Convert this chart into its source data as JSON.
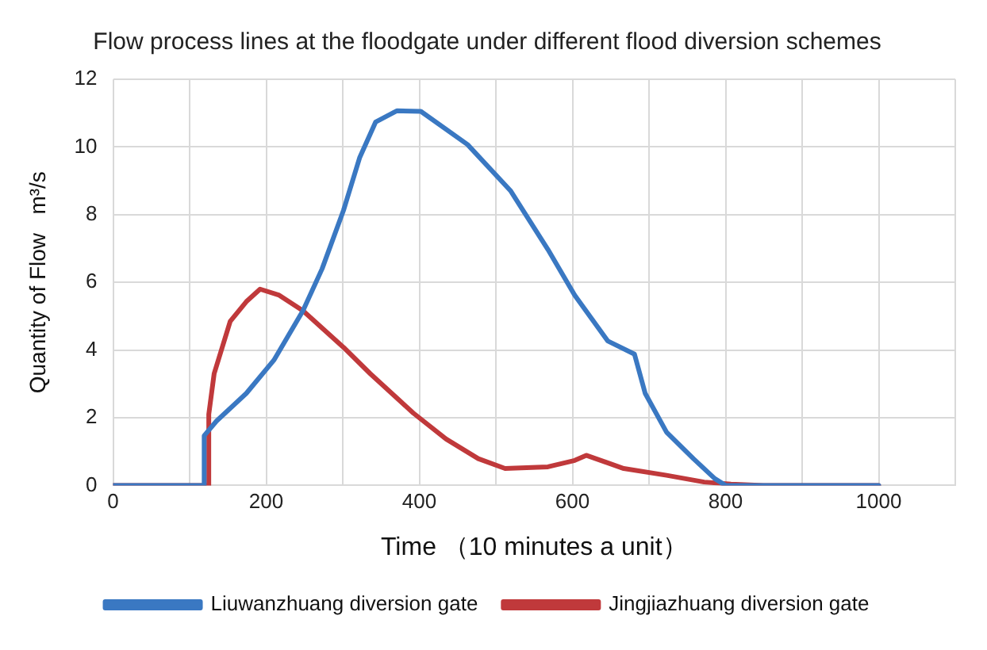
{
  "chart_data": {
    "type": "line",
    "title": "Flow process lines at the floodgate under different flood diversion schemes",
    "xlabel": "Time （10 minutes a unit）",
    "ylabel": "Quantity of Flow   m³/s",
    "xlim": [
      0,
      1100
    ],
    "xticks": [
      0,
      {
        "value": 100,
        "label": null
      },
      200,
      {
        "value": 300,
        "label": null
      },
      400,
      {
        "value": 500,
        "label": null
      },
      600,
      {
        "value": 700,
        "label": null
      },
      800,
      {
        "value": 900,
        "label": null
      },
      1000,
      {
        "value": 1100,
        "label": null
      }
    ],
    "ylim": [
      0,
      12
    ],
    "yticks": [
      0,
      2,
      4,
      6,
      8,
      10,
      12
    ],
    "grid": true,
    "legend": "bottom",
    "marker": "none",
    "line_style": "solid",
    "series": [
      {
        "name": "Liuwanzhuang diversion gate",
        "color": "#3a78c2",
        "x": [
          0,
          118,
          119,
          135,
          174,
          210,
          248,
          273,
          301,
          322,
          343,
          371,
          402,
          463,
          519,
          568,
          603,
          646,
          681,
          695,
          723,
          758,
          786,
          800,
          1000
        ],
        "values": [
          0,
          0,
          1.47,
          1.9,
          2.72,
          3.7,
          5.16,
          6.4,
          8.13,
          9.68,
          10.74,
          11.07,
          11.05,
          10.07,
          8.71,
          6.97,
          5.62,
          4.27,
          3.88,
          2.72,
          1.57,
          0.79,
          0.2,
          0,
          0
        ]
      },
      {
        "name": "Jingjiazhuang diversion gate",
        "color": "#c0393b",
        "x": [
          0,
          124,
          125,
          132,
          153,
          174,
          192,
          217,
          248,
          301,
          336,
          392,
          435,
          477,
          512,
          568,
          603,
          618,
          667,
          723,
          772,
          807,
          850,
          1000
        ],
        "values": [
          0,
          0,
          2.1,
          3.3,
          4.85,
          5.43,
          5.8,
          5.62,
          5.16,
          4.08,
          3.3,
          2.14,
          1.37,
          0.79,
          0.5,
          0.55,
          0.74,
          0.89,
          0.5,
          0.3,
          0.1,
          0.04,
          0,
          0
        ]
      }
    ]
  }
}
